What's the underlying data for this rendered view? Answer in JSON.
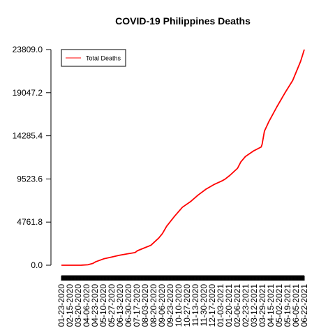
{
  "chart_data": {
    "type": "line",
    "title": "COVID-19 Philippines Deaths",
    "xlabel": "",
    "ylabel": "",
    "legend": {
      "position": "top-left",
      "entries": [
        "Total Deaths"
      ]
    },
    "colors": {
      "series": "#ff0000",
      "axis": "#000000"
    },
    "grid": false,
    "y_ticks": [
      "0.0",
      "4761.8",
      "9523.6",
      "14285.4",
      "19047.2",
      "23809.0"
    ],
    "ylim": [
      0,
      23809
    ],
    "x_tick_labels": [
      "01-23-2020",
      "02-15-2020",
      "03-20-2020",
      "04-06-2020",
      "04-23-2020",
      "05-10-2020",
      "05-27-2020",
      "06-13-2020",
      "06-30-2020",
      "07-17-2020",
      "08-03-2020",
      "08-20-2020",
      "09-06-2020",
      "09-23-2020",
      "10-10-2020",
      "10-27-2020",
      "11-13-2020",
      "11-30-2020",
      "12-17-2020",
      "01-03-2021",
      "01-20-2021",
      "02-06-2021",
      "02-23-2021",
      "03-12-2021",
      "03-29-2021",
      "04-15-2021",
      "05-02-2021",
      "05-19-2021",
      "06-05-2021",
      "06-22-2021"
    ],
    "series": [
      {
        "name": "Total Deaths",
        "x": [
          "2020-01-23",
          "2020-02-15",
          "2020-03-06",
          "2020-03-20",
          "2020-03-31",
          "2020-04-06",
          "2020-04-23",
          "2020-05-10",
          "2020-05-27",
          "2020-06-13",
          "2020-06-30",
          "2020-07-05",
          "2020-07-17",
          "2020-08-03",
          "2020-08-20",
          "2020-08-28",
          "2020-09-06",
          "2020-09-23",
          "2020-10-10",
          "2020-10-27",
          "2020-11-13",
          "2020-11-30",
          "2020-12-17",
          "2021-01-03",
          "2021-01-10",
          "2021-01-20",
          "2021-02-06",
          "2021-02-13",
          "2021-02-23",
          "2021-03-12",
          "2021-03-29",
          "2021-03-31",
          "2021-04-05",
          "2021-04-15",
          "2021-05-02",
          "2021-05-19",
          "2021-06-05",
          "2021-06-22",
          "2021-06-30"
        ],
        "values": [
          0,
          0,
          5,
          50,
          200,
          380,
          700,
          900,
          1100,
          1250,
          1400,
          1600,
          1850,
          2200,
          3000,
          3500,
          4300,
          5400,
          6400,
          7000,
          7750,
          8400,
          8900,
          9300,
          9500,
          9900,
          10700,
          11400,
          12000,
          12600,
          13050,
          13350,
          14800,
          15900,
          17500,
          19000,
          20400,
          22500,
          23809
        ]
      }
    ]
  }
}
